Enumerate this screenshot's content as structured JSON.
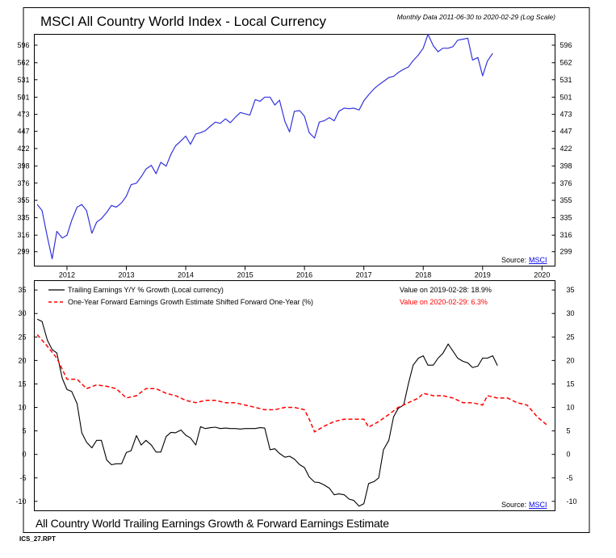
{
  "page": {
    "footer_title": "All Country World Trailing Earnings Growth & Forward Earnings Estimate",
    "report_id": "ICS_27.RPT"
  },
  "chart_data": [
    {
      "type": "line",
      "title": "MSCI All Country World Index - Local Currency",
      "subtitle": "Monthly Data 2011-06-30 to 2020-02-29 (Log Scale)",
      "source_label": "Source:",
      "source_link": "MSCI",
      "scale": "log",
      "ylim": [
        285,
        618
      ],
      "xlim": [
        2011.45,
        2020.22
      ],
      "y_ticks": [
        299,
        316,
        335,
        355,
        376,
        398,
        422,
        447,
        473,
        501,
        531,
        562,
        596
      ],
      "x_ticks": [
        2012,
        2013,
        2014,
        2015,
        2016,
        2017,
        2018,
        2019,
        2020
      ],
      "grid": false,
      "series": [
        {
          "color": "#3333dd",
          "points": [
            [
              2011.5,
              350
            ],
            [
              2011.58,
              343
            ],
            [
              2011.67,
              314
            ],
            [
              2011.75,
              292
            ],
            [
              2011.83,
              320
            ],
            [
              2011.92,
              313
            ],
            [
              2012.0,
              316
            ],
            [
              2012.08,
              332
            ],
            [
              2012.17,
              347
            ],
            [
              2012.25,
              350
            ],
            [
              2012.33,
              343
            ],
            [
              2012.42,
              318
            ],
            [
              2012.5,
              330
            ],
            [
              2012.58,
              334
            ],
            [
              2012.67,
              341
            ],
            [
              2012.75,
              349
            ],
            [
              2012.83,
              347
            ],
            [
              2012.92,
              352
            ],
            [
              2013.0,
              360
            ],
            [
              2013.08,
              374
            ],
            [
              2013.17,
              376
            ],
            [
              2013.25,
              384
            ],
            [
              2013.33,
              394
            ],
            [
              2013.42,
              399
            ],
            [
              2013.5,
              388
            ],
            [
              2013.58,
              403
            ],
            [
              2013.67,
              398
            ],
            [
              2013.75,
              414
            ],
            [
              2013.83,
              426
            ],
            [
              2013.92,
              433
            ],
            [
              2014.0,
              440
            ],
            [
              2014.08,
              428
            ],
            [
              2014.17,
              443
            ],
            [
              2014.25,
              445
            ],
            [
              2014.33,
              448
            ],
            [
              2014.42,
              455
            ],
            [
              2014.5,
              461
            ],
            [
              2014.58,
              459
            ],
            [
              2014.67,
              466
            ],
            [
              2014.75,
              460
            ],
            [
              2014.83,
              468
            ],
            [
              2014.92,
              476
            ],
            [
              2015.0,
              474
            ],
            [
              2015.08,
              472
            ],
            [
              2015.17,
              497
            ],
            [
              2015.25,
              494
            ],
            [
              2015.33,
              501
            ],
            [
              2015.42,
              501
            ],
            [
              2015.5,
              488
            ],
            [
              2015.58,
              496
            ],
            [
              2015.67,
              462
            ],
            [
              2015.75,
              446
            ],
            [
              2015.83,
              478
            ],
            [
              2015.92,
              479
            ],
            [
              2016.0,
              470
            ],
            [
              2016.08,
              445
            ],
            [
              2016.17,
              437
            ],
            [
              2016.25,
              461
            ],
            [
              2016.33,
              463
            ],
            [
              2016.42,
              468
            ],
            [
              2016.5,
              463
            ],
            [
              2016.58,
              478
            ],
            [
              2016.67,
              483
            ],
            [
              2016.75,
              482
            ],
            [
              2016.83,
              483
            ],
            [
              2016.92,
              480
            ],
            [
              2017.0,
              495
            ],
            [
              2017.08,
              505
            ],
            [
              2017.17,
              515
            ],
            [
              2017.25,
              522
            ],
            [
              2017.33,
              528
            ],
            [
              2017.42,
              535
            ],
            [
              2017.5,
              537
            ],
            [
              2017.58,
              544
            ],
            [
              2017.67,
              550
            ],
            [
              2017.75,
              554
            ],
            [
              2017.83,
              566
            ],
            [
              2017.92,
              577
            ],
            [
              2018.0,
              590
            ],
            [
              2018.08,
              618
            ],
            [
              2018.17,
              595
            ],
            [
              2018.25,
              583
            ],
            [
              2018.33,
              590
            ],
            [
              2018.42,
              590
            ],
            [
              2018.5,
              593
            ],
            [
              2018.58,
              606
            ],
            [
              2018.67,
              608
            ],
            [
              2018.75,
              610
            ],
            [
              2018.83,
              567
            ],
            [
              2018.92,
              572
            ],
            [
              2019.0,
              538
            ],
            [
              2019.08,
              565
            ],
            [
              2019.17,
              580
            ]
          ]
        }
      ]
    },
    {
      "type": "line",
      "xlabel": "",
      "ylabel": "",
      "ylim": [
        -12,
        37
      ],
      "xlim": [
        2011.45,
        2020.22
      ],
      "y_ticks": [
        -10,
        -5,
        0,
        5,
        10,
        15,
        20,
        25,
        30,
        35
      ],
      "grid": false,
      "source_label": "Source:",
      "source_link": "MSCI",
      "legend_position": "top-left",
      "annotations": [
        {
          "text": "Value on 2019-02-28: 18.9%",
          "color": "#000000"
        },
        {
          "text": "Value on 2020-02-29: 6.3%",
          "color": "#ff0000"
        }
      ],
      "series": [
        {
          "name": "Trailing Earnings Y/Y % Growth (Local currency)",
          "color": "#000000",
          "dash": "solid",
          "points": [
            [
              2011.5,
              28.8
            ],
            [
              2011.58,
              28.3
            ],
            [
              2011.67,
              24.3
            ],
            [
              2011.75,
              22.3
            ],
            [
              2011.83,
              21.6
            ],
            [
              2011.92,
              16.2
            ],
            [
              2012.0,
              13.8
            ],
            [
              2012.08,
              13.4
            ],
            [
              2012.17,
              10.8
            ],
            [
              2012.25,
              4.6
            ],
            [
              2012.33,
              2.6
            ],
            [
              2012.42,
              1.4
            ],
            [
              2012.5,
              3.0
            ],
            [
              2012.58,
              3.0
            ],
            [
              2012.67,
              -1.2
            ],
            [
              2012.75,
              -2.2
            ],
            [
              2012.83,
              -2.0
            ],
            [
              2012.92,
              -2.0
            ],
            [
              2013.0,
              0.4
            ],
            [
              2013.08,
              0.8
            ],
            [
              2013.17,
              4.0
            ],
            [
              2013.25,
              2.0
            ],
            [
              2013.33,
              3.0
            ],
            [
              2013.42,
              2.0
            ],
            [
              2013.5,
              0.5
            ],
            [
              2013.58,
              0.5
            ],
            [
              2013.67,
              3.8
            ],
            [
              2013.75,
              4.7
            ],
            [
              2013.83,
              4.6
            ],
            [
              2013.92,
              5.2
            ],
            [
              2014.0,
              4.1
            ],
            [
              2014.08,
              3.5
            ],
            [
              2014.17,
              2.0
            ],
            [
              2014.25,
              5.9
            ],
            [
              2014.33,
              5.5
            ],
            [
              2014.42,
              5.7
            ],
            [
              2014.5,
              5.8
            ],
            [
              2014.58,
              5.5
            ],
            [
              2014.67,
              5.6
            ],
            [
              2014.75,
              5.5
            ],
            [
              2014.83,
              5.5
            ],
            [
              2014.92,
              5.4
            ],
            [
              2015.0,
              5.5
            ],
            [
              2015.08,
              5.5
            ],
            [
              2015.17,
              5.5
            ],
            [
              2015.25,
              5.7
            ],
            [
              2015.33,
              5.6
            ],
            [
              2015.42,
              1.0
            ],
            [
              2015.5,
              1.2
            ],
            [
              2015.58,
              0.2
            ],
            [
              2015.67,
              -0.6
            ],
            [
              2015.75,
              -0.4
            ],
            [
              2015.83,
              -1.0
            ],
            [
              2015.92,
              -2.2
            ],
            [
              2016.0,
              -2.8
            ],
            [
              2016.08,
              -4.8
            ],
            [
              2016.17,
              -5.9
            ],
            [
              2016.25,
              -6.0
            ],
            [
              2016.33,
              -6.5
            ],
            [
              2016.42,
              -7.2
            ],
            [
              2016.5,
              -8.6
            ],
            [
              2016.58,
              -8.4
            ],
            [
              2016.67,
              -8.6
            ],
            [
              2016.75,
              -9.5
            ],
            [
              2016.83,
              -9.8
            ],
            [
              2016.92,
              -11.0
            ],
            [
              2017.0,
              -10.5
            ],
            [
              2017.08,
              -6.2
            ],
            [
              2017.17,
              -5.8
            ],
            [
              2017.25,
              -5.0
            ],
            [
              2017.33,
              1.0
            ],
            [
              2017.42,
              3.0
            ],
            [
              2017.5,
              8.0
            ],
            [
              2017.58,
              9.8
            ],
            [
              2017.67,
              10.5
            ],
            [
              2017.75,
              15.0
            ],
            [
              2017.83,
              19.0
            ],
            [
              2017.92,
              20.5
            ],
            [
              2018.0,
              21.0
            ],
            [
              2018.08,
              19.0
            ],
            [
              2018.17,
              19.0
            ],
            [
              2018.25,
              20.5
            ],
            [
              2018.33,
              21.5
            ],
            [
              2018.42,
              23.5
            ],
            [
              2018.5,
              22.0
            ],
            [
              2018.58,
              20.5
            ],
            [
              2018.67,
              19.8
            ],
            [
              2018.75,
              19.5
            ],
            [
              2018.83,
              18.5
            ],
            [
              2018.92,
              18.8
            ],
            [
              2019.0,
              20.5
            ],
            [
              2019.08,
              20.5
            ],
            [
              2019.17,
              21.0
            ],
            [
              2019.25,
              18.9
            ]
          ]
        },
        {
          "name": "One-Year Forward Earnings Growth Estimate Shifted Forward One-Year (%)",
          "color": "#ff0000",
          "dash": "dashed",
          "points": [
            [
              2011.5,
              25.5
            ],
            [
              2011.67,
              23.0
            ],
            [
              2011.83,
              20.5
            ],
            [
              2012.0,
              16.0
            ],
            [
              2012.17,
              16.0
            ],
            [
              2012.33,
              14.0
            ],
            [
              2012.5,
              14.8
            ],
            [
              2012.67,
              14.5
            ],
            [
              2012.83,
              14.0
            ],
            [
              2013.0,
              12.0
            ],
            [
              2013.17,
              12.5
            ],
            [
              2013.33,
              14.0
            ],
            [
              2013.5,
              14.0
            ],
            [
              2013.67,
              13.0
            ],
            [
              2013.83,
              12.5
            ],
            [
              2014.0,
              11.5
            ],
            [
              2014.17,
              11.0
            ],
            [
              2014.33,
              11.5
            ],
            [
              2014.5,
              11.5
            ],
            [
              2014.67,
              11.0
            ],
            [
              2014.83,
              11.0
            ],
            [
              2015.0,
              10.5
            ],
            [
              2015.17,
              10.0
            ],
            [
              2015.33,
              9.5
            ],
            [
              2015.5,
              9.5
            ],
            [
              2015.67,
              10.0
            ],
            [
              2015.83,
              10.0
            ],
            [
              2016.0,
              9.5
            ],
            [
              2016.08,
              7.5
            ],
            [
              2016.17,
              4.8
            ],
            [
              2016.33,
              6.0
            ],
            [
              2016.5,
              7.0
            ],
            [
              2016.67,
              7.5
            ],
            [
              2016.83,
              7.5
            ],
            [
              2017.0,
              7.5
            ],
            [
              2017.08,
              5.8
            ],
            [
              2017.25,
              7.0
            ],
            [
              2017.42,
              8.5
            ],
            [
              2017.58,
              10.0
            ],
            [
              2017.75,
              11.0
            ],
            [
              2017.92,
              12.0
            ],
            [
              2018.0,
              13.0
            ],
            [
              2018.17,
              12.5
            ],
            [
              2018.33,
              12.5
            ],
            [
              2018.5,
              12.0
            ],
            [
              2018.67,
              11.0
            ],
            [
              2018.83,
              11.0
            ],
            [
              2019.0,
              10.5
            ],
            [
              2019.08,
              12.5
            ],
            [
              2019.25,
              12.0
            ],
            [
              2019.42,
              12.0
            ],
            [
              2019.58,
              11.0
            ],
            [
              2019.75,
              10.5
            ],
            [
              2019.92,
              8.0
            ],
            [
              2020.08,
              6.3
            ]
          ]
        }
      ]
    }
  ]
}
